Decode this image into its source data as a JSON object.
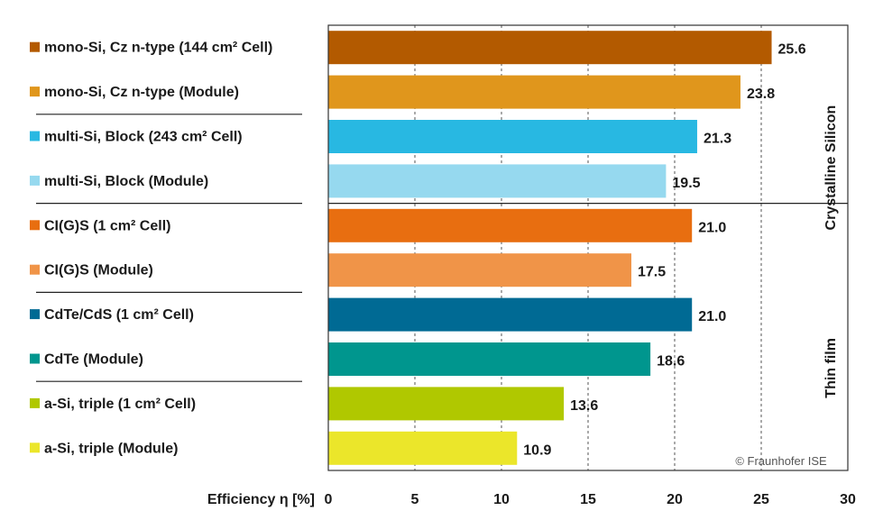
{
  "chart_data": {
    "type": "bar",
    "orientation": "horizontal",
    "categories": [
      "mono-Si, Cz n-type (144 cm² Cell)",
      "mono-Si, Cz n-type (Module)",
      "multi-Si, Block (243 cm² Cell)",
      "multi-Si, Block (Module)",
      "CI(G)S (1 cm² Cell)",
      "CI(G)S (Module)",
      "CdTe/CdS (1 cm² Cell)",
      "CdTe (Module)",
      "a-Si, triple (1 cm² Cell)",
      "a-Si, triple (Module)"
    ],
    "values": [
      25.6,
      23.8,
      21.3,
      19.5,
      21.0,
      17.5,
      21.0,
      18.6,
      13.6,
      10.9
    ],
    "value_labels": [
      "25.6",
      "23.8",
      "21.3",
      "19.5",
      "21.0",
      "17.5",
      "21.0",
      "18.6",
      "13.6",
      "10.9"
    ],
    "colors": [
      "#b35a00",
      "#e0961c",
      "#28b8e2",
      "#96d9ef",
      "#e86e10",
      "#f09448",
      "#006a94",
      "#00968e",
      "#b0c800",
      "#ebe62a"
    ],
    "xlabel": "Efficiency η [%]",
    "xlim": [
      0,
      30
    ],
    "xticks": [
      0,
      5,
      10,
      15,
      20,
      25,
      30
    ],
    "grid": "vertical dashed",
    "groups": [
      {
        "label": "Crystalline Silicon",
        "first": 0,
        "last": 3
      },
      {
        "label": "Thin film",
        "first": 4,
        "last": 9
      }
    ],
    "separators_after": [
      1,
      3,
      5,
      7
    ],
    "copyright": "© Fraunhofer ISE"
  }
}
